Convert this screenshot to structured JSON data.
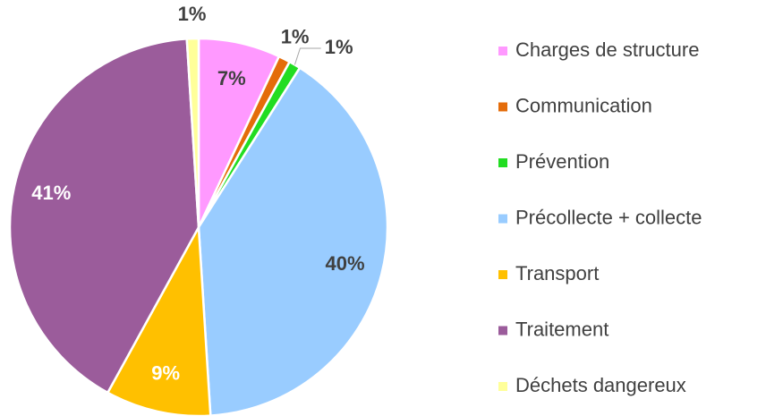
{
  "chart_data": {
    "type": "pie",
    "categories": [
      "Charges de structure",
      "Communication",
      "Prévention",
      "Précollecte + collecte",
      "Transport",
      "Traitement",
      "Déchets dangereux"
    ],
    "values": [
      7,
      1,
      1,
      40,
      9,
      41,
      1
    ],
    "value_labels": [
      "7%",
      "1%",
      "1%",
      "40%",
      "9%",
      "41%",
      "1%"
    ],
    "colors": [
      "#ff99ff",
      "#e46c0a",
      "#22dd22",
      "#99ccff",
      "#ffc000",
      "#9b5c9b",
      "#ffff99"
    ],
    "label_colors": [
      "#404040",
      "#404040",
      "#404040",
      "#404040",
      "#ffffff",
      "#ffffff",
      "#404040"
    ],
    "legend": "right"
  }
}
